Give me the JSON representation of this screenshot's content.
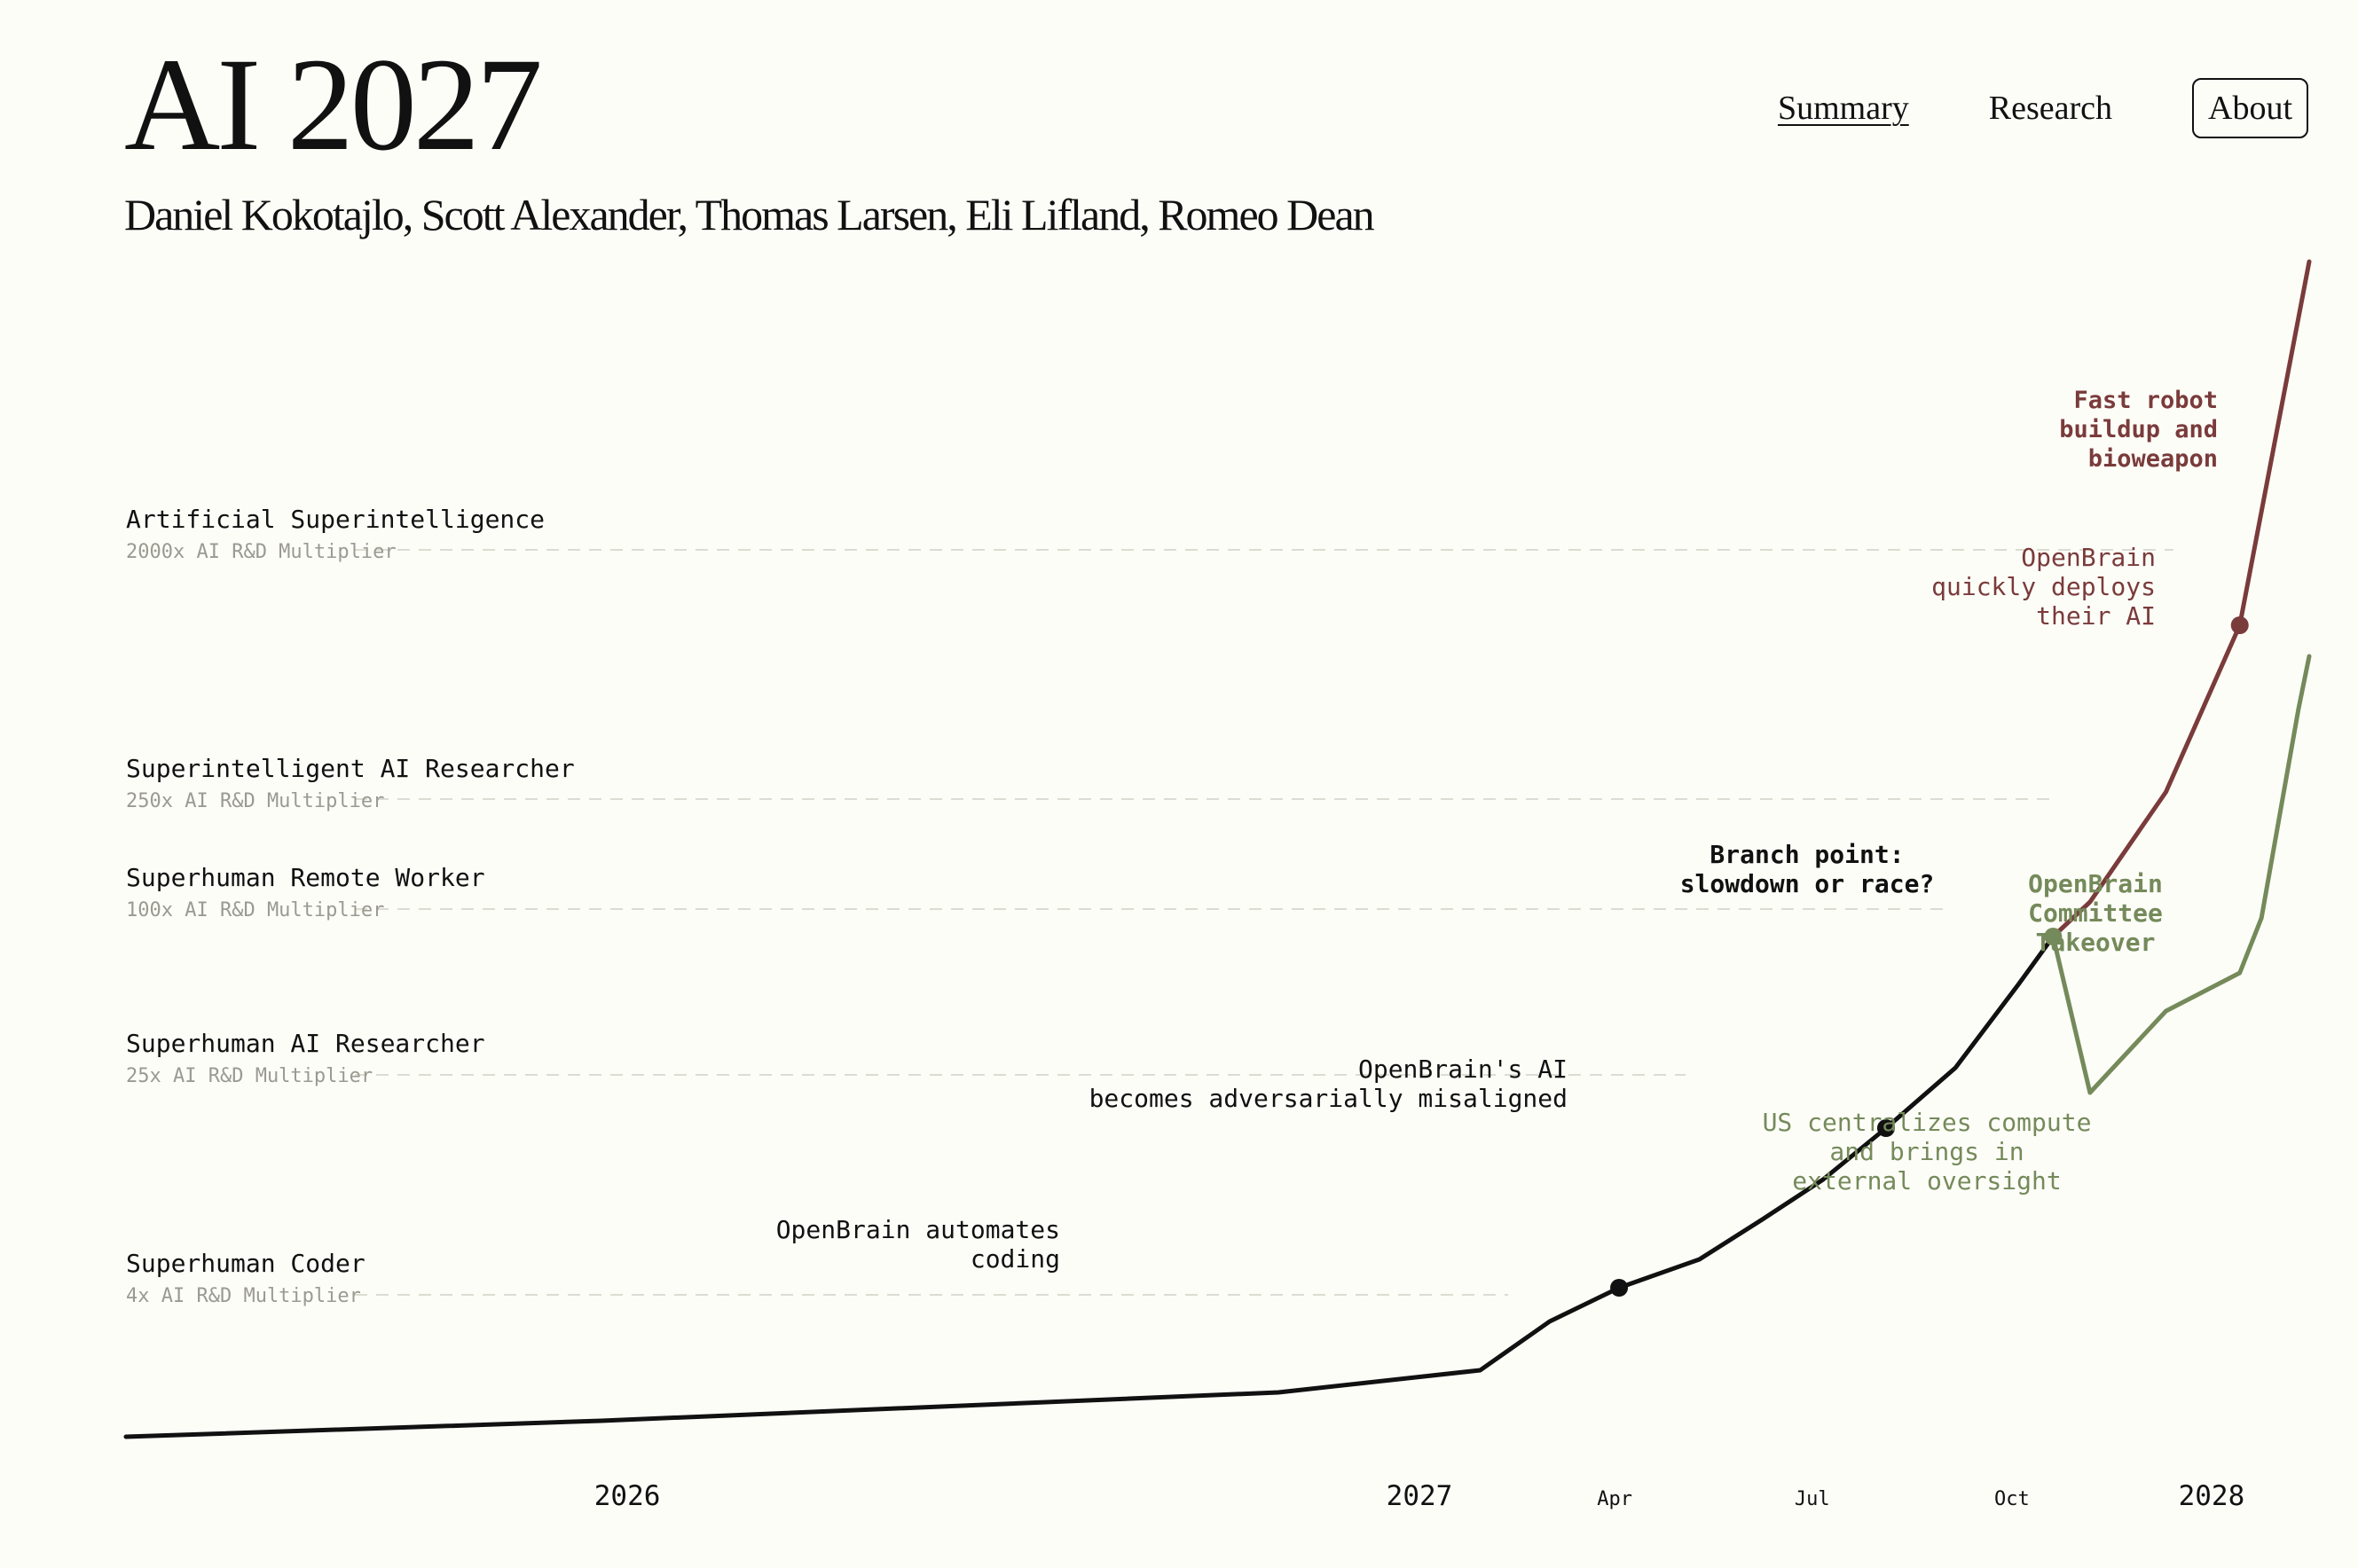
{
  "header": {
    "title": "AI 2027",
    "authors": "Daniel Kokotajlo, Scott Alexander, Thomas Larsen, Eli Lifland, Romeo Dean"
  },
  "nav": {
    "items": [
      {
        "label": "Summary",
        "active": true
      },
      {
        "label": "Research",
        "active": false
      },
      {
        "label": "About",
        "boxed": true
      }
    ]
  },
  "chart_data": {
    "type": "line",
    "title": "",
    "xlabel": "",
    "ylabel": "",
    "x_ticks": [
      {
        "date": "2026-01-01",
        "label": "2026",
        "major": true
      },
      {
        "date": "2027-01-01",
        "label": "2027",
        "major": true
      },
      {
        "date": "2027-04-01",
        "label": "Apr",
        "major": false
      },
      {
        "date": "2027-07-01",
        "label": "Jul",
        "major": false
      },
      {
        "date": "2027-10-01",
        "label": "Oct",
        "major": false
      },
      {
        "date": "2028-01-01",
        "label": "2028",
        "major": true
      }
    ],
    "xlim": [
      "2025-05-15",
      "2028-02-15"
    ],
    "milestones": [
      {
        "name": "Superhuman Coder",
        "multiplier": "4x AI R&D Multiplier",
        "level": 4
      },
      {
        "name": "Superhuman AI Researcher",
        "multiplier": "25x AI R&D Multiplier",
        "level": 25
      },
      {
        "name": "Superhuman Remote Worker",
        "multiplier": "100x AI R&D Multiplier",
        "level": 100
      },
      {
        "name": "Superintelligent AI Researcher",
        "multiplier": "250x AI R&D Multiplier",
        "level": 250
      },
      {
        "name": "Artificial Superintelligence",
        "multiplier": "2000x AI R&D Multiplier",
        "level": 2000
      }
    ],
    "colors": {
      "main": "#111111",
      "race": "#7a3b3b",
      "slowdown": "#758a5a",
      "gridline": "#dcdcd2",
      "subtext": "#9a9a92"
    },
    "series": [
      {
        "key": "main",
        "points": [
          {
            "date": "2025-05-15",
            "value": 1.07
          },
          {
            "date": "2025-12-20",
            "value": 1.25
          },
          {
            "date": "2026-10-28",
            "value": 1.8
          },
          {
            "date": "2027-01-29",
            "value": 2.3
          },
          {
            "date": "2027-03-02",
            "value": 2.8
          },
          {
            "date": "2027-04-03",
            "value": 4.0
          },
          {
            "date": "2027-05-10",
            "value": 5.0
          },
          {
            "date": "2027-06-08",
            "value": 7.0
          },
          {
            "date": "2027-07-06",
            "value": 10.5
          },
          {
            "date": "2027-08-04",
            "value": 16.0
          },
          {
            "date": "2027-09-05",
            "value": 25.0
          },
          {
            "date": "2027-10-04",
            "value": 45.0
          },
          {
            "date": "2027-10-20",
            "value": 68.0
          }
        ]
      },
      {
        "key": "race",
        "points": [
          {
            "date": "2027-10-20",
            "value": 68.0
          },
          {
            "date": "2027-11-06",
            "value": 100.0
          },
          {
            "date": "2027-12-11",
            "value": 250.0
          },
          {
            "date": "2028-01-14",
            "value": 700.0
          },
          {
            "date": "2028-02-15",
            "value": 30000.0
          }
        ]
      },
      {
        "key": "slowdown",
        "points": [
          {
            "date": "2027-10-20",
            "value": 68.0
          },
          {
            "date": "2027-11-06",
            "value": 23.0
          },
          {
            "date": "2027-12-11",
            "value": 38.0
          },
          {
            "date": "2028-01-14",
            "value": 48.0
          },
          {
            "date": "2028-01-24",
            "value": 75.0
          },
          {
            "date": "2028-02-10",
            "value": 850.0
          },
          {
            "date": "2028-02-15",
            "value": 1280.0
          }
        ]
      }
    ],
    "markers": [
      {
        "date": "2027-04-03",
        "value": 4.0,
        "key": "main"
      },
      {
        "date": "2027-08-04",
        "value": 16.0,
        "key": "main"
      },
      {
        "date": "2027-10-20",
        "value": 68.0,
        "key": "slowdown"
      },
      {
        "date": "2028-01-14",
        "value": 700.0,
        "key": "race"
      }
    ],
    "annotations": [
      {
        "lines": [
          "OpenBrain automates",
          "coding"
        ],
        "key": "main",
        "bold": false
      },
      {
        "lines": [
          "OpenBrain's AI",
          "becomes adversarially misaligned"
        ],
        "key": "main",
        "bold": false
      },
      {
        "lines": [
          "Branch point:",
          "slowdown or race?"
        ],
        "key": "main",
        "bold": true
      },
      {
        "lines": [
          "Fast robot",
          "buildup and",
          "bioweapon"
        ],
        "key": "race",
        "bold": true
      },
      {
        "lines": [
          "OpenBrain",
          "quickly deploys",
          "their AI"
        ],
        "key": "race",
        "bold": false
      },
      {
        "lines": [
          "OpenBrain",
          "Committee",
          "Takeover"
        ],
        "key": "slowdown",
        "bold": true
      },
      {
        "lines": [
          "US centralizes compute",
          "and brings in",
          "external oversight"
        ],
        "key": "slowdown",
        "bold": false
      }
    ]
  }
}
